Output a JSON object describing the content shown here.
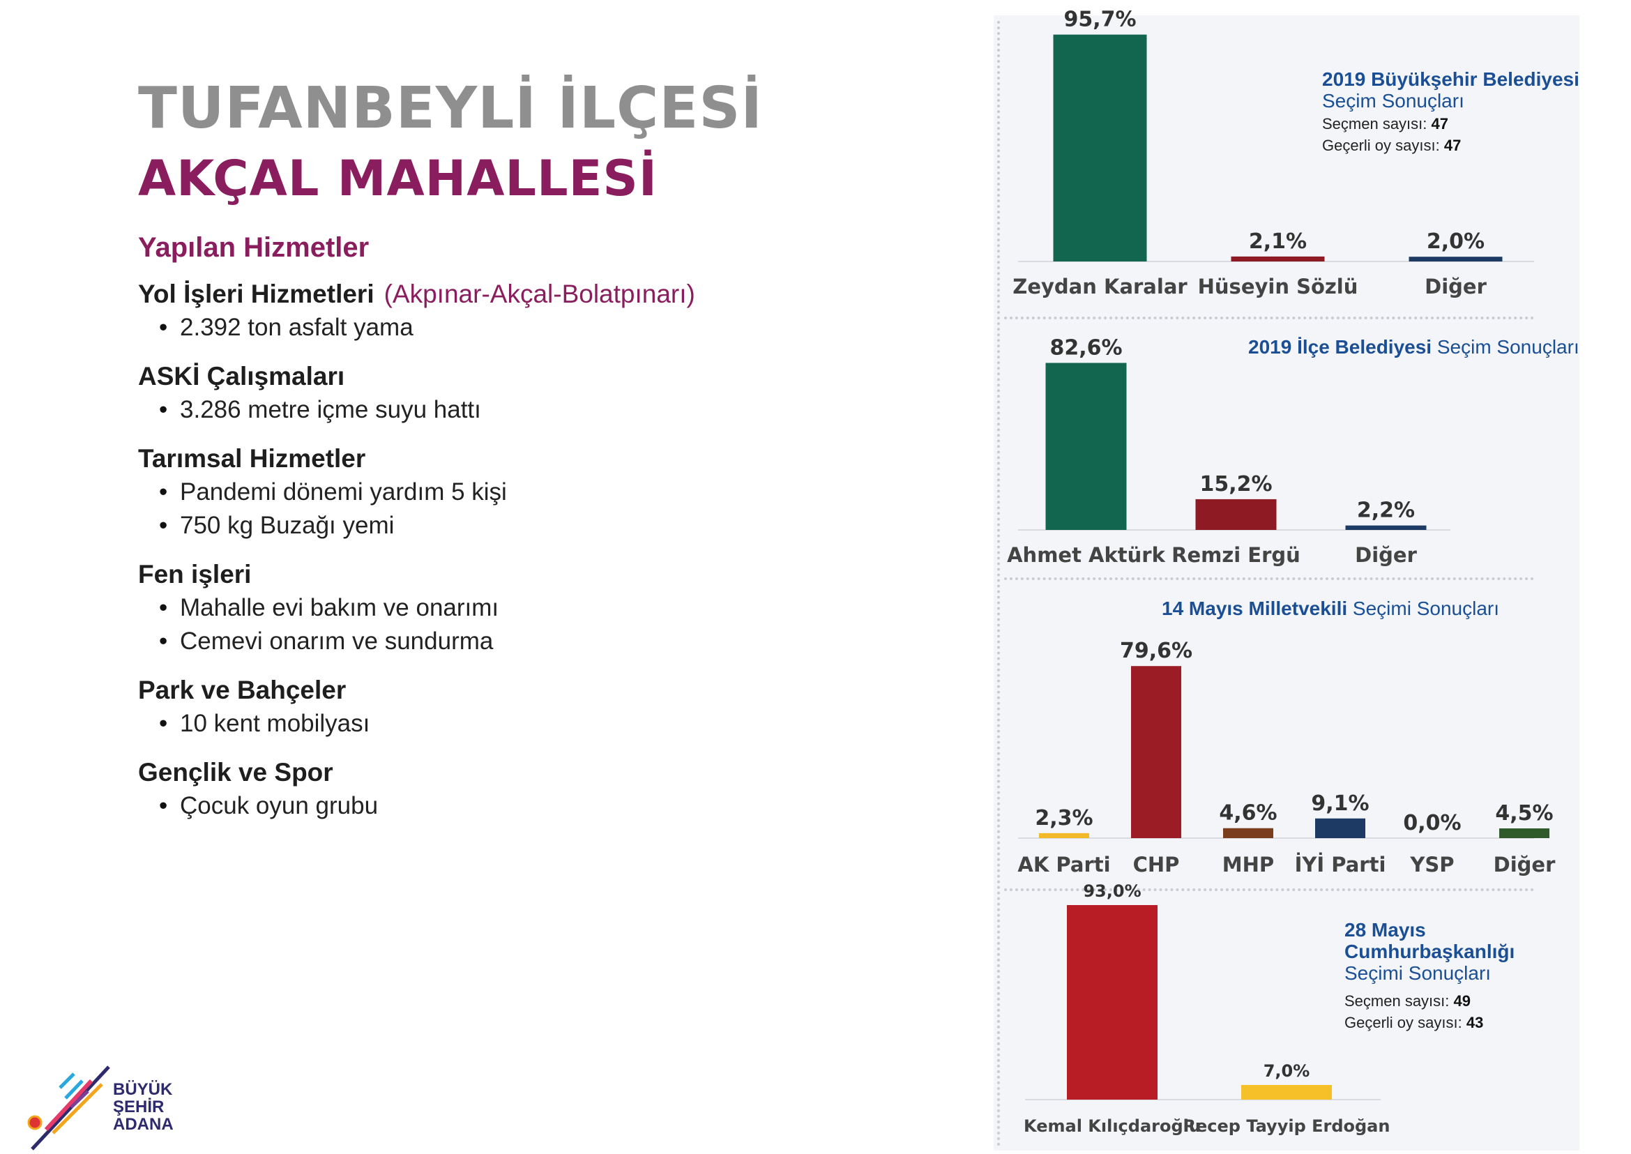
{
  "header": {
    "district": "TUFANBEYLİ İLÇESİ",
    "neighborhood": "AKÇAL MAHALLESİ",
    "services_title": "Yapılan Hizmetler"
  },
  "services": [
    {
      "title": "Yol İşleri Hizmetleri",
      "note": "(Akpınar-Akçal-Bolatpınarı)",
      "items": [
        "2.392 ton asfalt yama"
      ]
    },
    {
      "title": "ASKİ Çalışmaları",
      "items": [
        "3.286 metre içme suyu hattı"
      ]
    },
    {
      "title": "Tarımsal Hizmetler",
      "items": [
        "Pandemi dönemi yardım 5 kişi",
        "750 kg Buzağı yemi"
      ]
    },
    {
      "title": "Fen işleri",
      "items": [
        "Mahalle evi bakım ve onarımı",
        "Cemevi onarım ve sundurma"
      ]
    },
    {
      "title": "Park ve Bahçeler",
      "items": [
        "10 kent mobilyası"
      ]
    },
    {
      "title": "Gençlik ve Spor",
      "items": [
        "Çocuk oyun grubu"
      ]
    }
  ],
  "logo": {
    "line1": "BÜYÜK",
    "line2": "ŞEHİR",
    "line3": "ADANA"
  },
  "info": {
    "c1_title_bold": "2019 Büyükşehir Belediyesi",
    "c1_title_light": "Seçim Sonuçları",
    "c1_voters_label": "Seçmen sayısı:",
    "c1_voters": "47",
    "c1_valid_label": "Geçerli oy sayısı:",
    "c1_valid": "47",
    "c2_title_bold": "2019 İlçe Belediyesi",
    "c2_title_light": "Seçim Sonuçları",
    "c3_title_bold": "14 Mayıs Milletvekili",
    "c3_title_light": "Seçimi Sonuçları",
    "c4_title_bold1": "28 Mayıs",
    "c4_title_bold2": "Cumhurbaşkanlığı",
    "c4_title_light": "Seçimi Sonuçları",
    "c4_voters_label": "Seçmen sayısı:",
    "c4_voters": "49",
    "c4_valid_label": "Geçerli oy sayısı:",
    "c4_valid": "43"
  },
  "chart_data": [
    {
      "type": "bar",
      "title": "2019 Büyükşehir Belediyesi Seçim Sonuçları",
      "categories": [
        "Zeydan Karalar",
        "Hüseyin Sözlü",
        "Diğer"
      ],
      "values": [
        95.7,
        2.1,
        2.0
      ],
      "value_labels": [
        "95,7%",
        "2,1%",
        "2,0%"
      ],
      "colors": [
        "#12654f",
        "#8e1a23",
        "#1c3a64"
      ],
      "ylim": [
        0,
        100
      ]
    },
    {
      "type": "bar",
      "title": "2019 İlçe Belediyesi Seçim Sonuçları",
      "categories": [
        "Ahmet Aktürk",
        "Remzi Ergü",
        "Diğer"
      ],
      "values": [
        82.6,
        15.2,
        2.2
      ],
      "value_labels": [
        "82,6%",
        "15,2%",
        "2,2%"
      ],
      "colors": [
        "#12654f",
        "#8e1a23",
        "#1c3a64"
      ],
      "ylim": [
        0,
        100
      ]
    },
    {
      "type": "bar",
      "title": "14 Mayıs Milletvekili Seçimi Sonuçları",
      "categories": [
        "AK Parti",
        "CHP",
        "MHP",
        "İYİ Parti",
        "YSP",
        "Diğer"
      ],
      "values": [
        2.3,
        79.6,
        4.6,
        9.1,
        0.0,
        4.5
      ],
      "value_labels": [
        "2,3%",
        "79,6%",
        "4,6%",
        "9,1%",
        "0,0%",
        "4,5%"
      ],
      "colors": [
        "#f2b928",
        "#9b1c24",
        "#7a3d1e",
        "#1c3a64",
        "#777777",
        "#2f5a2a"
      ],
      "ylim": [
        0,
        100
      ]
    },
    {
      "type": "bar",
      "title": "28 Mayıs Cumhurbaşkanlığı Seçimi Sonuçları",
      "categories": [
        "Kemal Kılıçdaroğlu",
        "Recep Tayyip Erdoğan"
      ],
      "values": [
        93.0,
        7.0
      ],
      "value_labels": [
        "93,0%",
        "7,0%"
      ],
      "colors": [
        "#b81d26",
        "#f6c028"
      ],
      "ylim": [
        0,
        100
      ]
    }
  ]
}
